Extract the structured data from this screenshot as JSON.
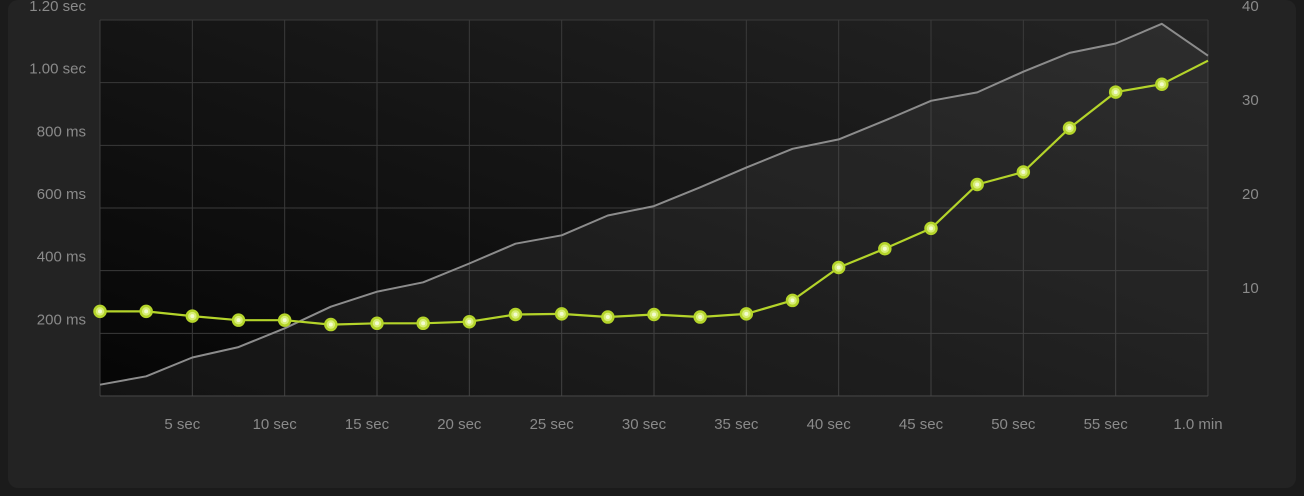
{
  "chart_data": {
    "type": "line",
    "x_ticks": [
      "5 sec",
      "10 sec",
      "15 sec",
      "20 sec",
      "25 sec",
      "30 sec",
      "35 sec",
      "40 sec",
      "45 sec",
      "50 sec",
      "55 sec",
      "1.0 min"
    ],
    "y_left_ticks": [
      "200 ms",
      "400 ms",
      "600 ms",
      "800 ms",
      "1.00 sec",
      "1.20 sec"
    ],
    "y_right_ticks": [
      "10",
      "20",
      "30",
      "40"
    ],
    "xlim": [
      0,
      60
    ],
    "ylim_left_ms": [
      0,
      1200
    ],
    "ylim_right": [
      0,
      40
    ],
    "grid": true,
    "series": [
      {
        "axis": "right",
        "color": "#8c8c8c",
        "x": [
          0,
          2.5,
          5,
          7.5,
          10,
          12.5,
          15,
          17.5,
          20,
          22.5,
          25,
          27.5,
          30,
          32.5,
          35,
          37.5,
          40,
          42.5,
          45,
          47.5,
          50,
          52.5,
          55,
          57.5,
          60
        ],
        "values": [
          1.2,
          2.1,
          4.1,
          5.2,
          7.2,
          9.5,
          11.1,
          12.1,
          14.1,
          16.2,
          17.1,
          19.2,
          20.2,
          22.2,
          24.3,
          26.3,
          27.3,
          29.3,
          31.4,
          32.3,
          34.5,
          36.5,
          37.5,
          39.6,
          36.2
        ]
      },
      {
        "axis": "left",
        "color": "#b4d42a",
        "x": [
          0,
          2.5,
          5,
          7.5,
          10,
          12.5,
          15,
          17.5,
          20,
          22.5,
          25,
          27.5,
          30,
          32.5,
          35,
          37.5,
          40,
          42.5,
          45,
          47.5,
          50,
          52.5,
          55,
          57.5,
          60
        ],
        "values": [
          270,
          270,
          255,
          242,
          242,
          228,
          232,
          232,
          237,
          260,
          262,
          252,
          260,
          252,
          262,
          305,
          410,
          470,
          535,
          675,
          715,
          855,
          970,
          995,
          1070
        ],
        "markers_shown": 24
      }
    ]
  }
}
